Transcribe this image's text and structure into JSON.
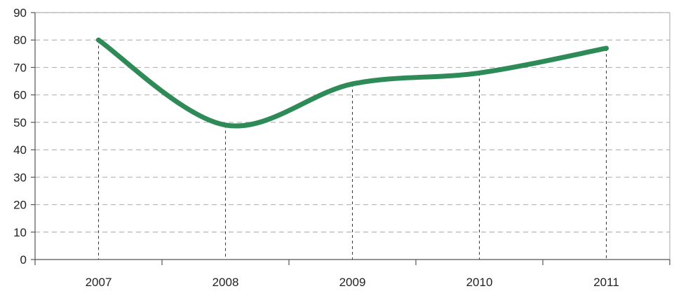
{
  "chart_data": {
    "type": "line",
    "title": "",
    "xlabel": "",
    "ylabel": "",
    "categories": [
      "2007",
      "2008",
      "2009",
      "2010",
      "2011"
    ],
    "series": [
      {
        "values": [
          80,
          49,
          64,
          68,
          77
        ]
      }
    ],
    "ylim": [
      0,
      90
    ],
    "yticks": [
      0,
      10,
      20,
      30,
      40,
      50,
      60,
      70,
      80,
      90
    ],
    "grid": true,
    "legend": "none",
    "line_color": "#2e8b57",
    "grid_color": "#b5b5b5",
    "axis_color": "#555555"
  }
}
